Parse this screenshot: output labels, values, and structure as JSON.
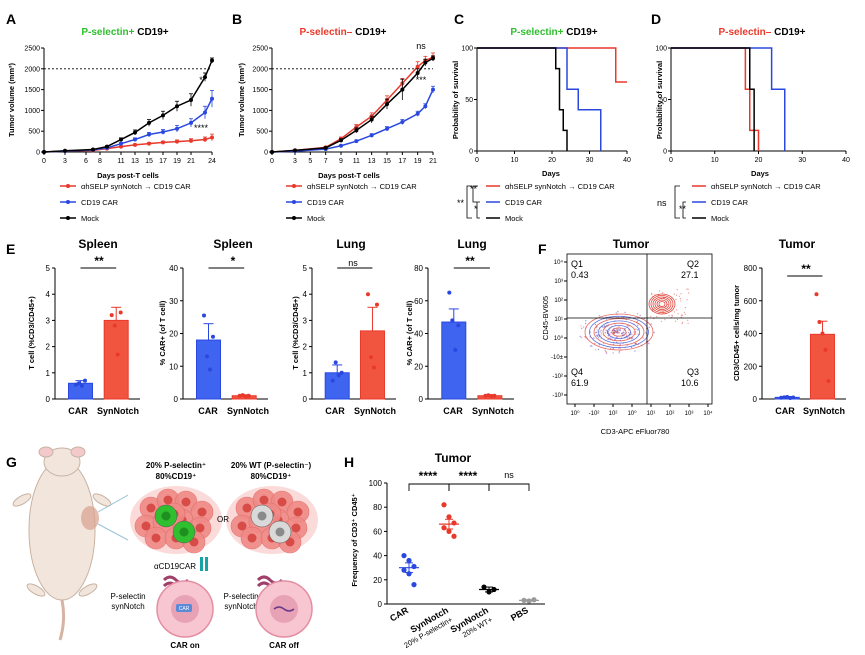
{
  "colors": {
    "selp": "#e8392b",
    "car": "#2a48e0",
    "mock": "#000000",
    "green": "#2fbf2f",
    "gray": "#9a9a9a",
    "darkred": "#d42b2b"
  },
  "panels": {
    "A": {
      "label": "A",
      "title_colored": "P-selectin+",
      "title_rest": " CD19+",
      "ylabel": "Tumor volume (mm³)",
      "xlabel": "Days post-T cells",
      "sig_top": "*",
      "sig_bottom": "****"
    },
    "B": {
      "label": "B",
      "title_colored": "P-selectin–",
      "title_rest": " CD19+",
      "ylabel": "Tumor volume (mm³)",
      "xlabel": "Days post-T cells",
      "sig_top": "ns",
      "sig_bottom": "***"
    },
    "C": {
      "label": "C",
      "title_colored": "P-selectin+",
      "title_rest": " CD19+",
      "ylabel": "Probability of survival",
      "xlabel": "Days",
      "sig_1": "**",
      "sig_2": "**",
      "sig_3": "*"
    },
    "D": {
      "label": "D",
      "title_colored": "P-selectin–",
      "title_rest": " CD19+",
      "ylabel": "Probability of survival",
      "xlabel": "Days",
      "sig_1": "ns",
      "sig_2": "**"
    },
    "E": {
      "label": "E",
      "spleen_t": {
        "title": "Spleen",
        "ylabel": "T cell (%CD3/CD45+)",
        "sig": "**"
      },
      "spleen_car": {
        "title": "Spleen",
        "ylabel": "% CAR+ (of T cell)",
        "sig": "*"
      },
      "lung_t": {
        "title": "Lung",
        "ylabel": "T cell (%CD3/CD45+)",
        "sig": "ns"
      },
      "lung_car": {
        "title": "Lung",
        "ylabel": "% CAR+ (of T cell)",
        "sig": "**"
      },
      "cat_car": "CAR",
      "cat_syn": "SynNotch"
    },
    "F": {
      "label": "F",
      "flow_title": "Tumor",
      "flow_xlabel": "CD3-APC eFluor780",
      "flow_ylabel": "CD45-BV605",
      "q1_label": "Q1",
      "q1_value": "0.43",
      "q2_label": "Q2",
      "q2_value": "27.1",
      "q3_label": "Q3",
      "q3_value": "10.6",
      "q4_label": "Q4",
      "q4_value": "61.9",
      "bar_title": "Tumor",
      "bar_ylabel": "CD3/CD45+ cells/mg tumor",
      "bar_sig": "**",
      "cat_car": "CAR",
      "cat_syn": "SynNotch"
    },
    "G": {
      "label": "G",
      "left_title_line1": "20% P-selectin⁺",
      "left_title_line2": "80%CD19⁺",
      "right_title_line1": "20% WT (P-selectin⁻)",
      "right_title_line2": "80%CD19⁺",
      "or_text": "OR",
      "acd19car": "αCD19CAR",
      "pselectin_left_1": "P-selectin",
      "pselectin_left_2": "synNotch",
      "pselectin_right_1": "P-selectin",
      "pselectin_right_2": "synNotch",
      "car_tag": "CAR",
      "car_on": "CAR on",
      "car_off": "CAR off"
    },
    "H": {
      "label": "H",
      "title": "Tumor",
      "ylabel": "Frequency of CD3⁺ CD45⁺",
      "sig_1": "****",
      "sig_2": "****",
      "sig_3": "ns",
      "cat_1": "CAR",
      "cat_2a": "SynNotch",
      "cat_2b": "20% P-selectin+",
      "cat_3a": "SynNotch",
      "cat_3b": "20% WT+",
      "cat_4": "PBS"
    }
  },
  "legend": {
    "selp": "αhSELP synNotch → CD19 CAR",
    "car": "CD19 CAR",
    "mock": "Mock"
  },
  "chart_data": [
    {
      "id": "A",
      "type": "line",
      "x": [
        0,
        3,
        7,
        9,
        11,
        13,
        15,
        17,
        19,
        21,
        23,
        24
      ],
      "xticks": [
        0,
        3,
        6,
        8,
        11,
        13,
        15,
        17,
        19,
        21,
        24
      ],
      "ylim": [
        0,
        2500
      ],
      "yticks": [
        0,
        500,
        1000,
        1500,
        2000,
        2500
      ],
      "threshold": 2000,
      "series": [
        {
          "name": "αhSELP synNotch → CD19 CAR",
          "color": "#e8392b",
          "values": [
            0,
            20,
            40,
            80,
            130,
            170,
            200,
            230,
            250,
            270,
            300,
            350
          ],
          "err": [
            0,
            5,
            10,
            15,
            20,
            25,
            30,
            30,
            40,
            50,
            60,
            80
          ]
        },
        {
          "name": "CD19 CAR",
          "color": "#2a48e0",
          "values": [
            0,
            20,
            50,
            100,
            200,
            300,
            420,
            480,
            560,
            700,
            950,
            1280
          ],
          "err": [
            0,
            5,
            10,
            20,
            30,
            40,
            50,
            60,
            80,
            100,
            150,
            200
          ]
        },
        {
          "name": "Mock",
          "color": "#000000",
          "values": [
            0,
            30,
            60,
            130,
            300,
            470,
            700,
            880,
            1100,
            1250,
            1800,
            2200
          ],
          "err": [
            0,
            5,
            10,
            20,
            40,
            60,
            80,
            100,
            120,
            150,
            100,
            60
          ]
        }
      ]
    },
    {
      "id": "B",
      "type": "line",
      "x": [
        0,
        3,
        7,
        9,
        11,
        13,
        15,
        17,
        19,
        20,
        21
      ],
      "xticks": [
        0,
        3,
        5,
        7,
        9,
        11,
        13,
        15,
        17,
        19,
        21
      ],
      "ylim": [
        0,
        2500
      ],
      "yticks": [
        0,
        500,
        1000,
        1500,
        2000,
        2500
      ],
      "threshold": 2000,
      "series": [
        {
          "name": "αhSELP synNotch → CD19 CAR",
          "color": "#e8392b",
          "values": [
            0,
            40,
            110,
            320,
            600,
            860,
            1250,
            1650,
            2050,
            2200,
            2280
          ],
          "err": [
            0,
            5,
            20,
            40,
            60,
            80,
            100,
            120,
            120,
            100,
            100
          ]
        },
        {
          "name": "CD19 CAR",
          "color": "#2a48e0",
          "values": [
            0,
            20,
            70,
            150,
            260,
            400,
            560,
            720,
            920,
            1100,
            1500
          ],
          "err": [
            0,
            5,
            10,
            20,
            30,
            40,
            50,
            60,
            60,
            60,
            80
          ]
        },
        {
          "name": "Mock",
          "color": "#000000",
          "values": [
            0,
            40,
            100,
            280,
            520,
            780,
            1150,
            1500,
            1900,
            2150,
            2250
          ],
          "err": [
            0,
            5,
            20,
            40,
            60,
            80,
            120,
            250,
            100,
            80,
            60
          ]
        }
      ]
    },
    {
      "id": "C",
      "type": "survival",
      "xlim": [
        0,
        40
      ],
      "xticks": [
        0,
        10,
        20,
        30,
        40
      ],
      "ylim": [
        0,
        100
      ],
      "yticks": [
        0,
        50,
        100
      ],
      "series": [
        {
          "name": "αhSELP synNotch → CD19 CAR",
          "color": "#e8392b",
          "steps": [
            [
              0,
              100
            ],
            [
              37,
              100
            ],
            [
              37,
              67
            ],
            [
              40,
              67
            ]
          ]
        },
        {
          "name": "CD19 CAR",
          "color": "#2a48e0",
          "steps": [
            [
              0,
              100
            ],
            [
              24,
              100
            ],
            [
              24,
              60
            ],
            [
              27,
              60
            ],
            [
              27,
              40
            ],
            [
              33,
              40
            ],
            [
              33,
              0
            ]
          ]
        },
        {
          "name": "Mock",
          "color": "#000000",
          "steps": [
            [
              0,
              100
            ],
            [
              21,
              100
            ],
            [
              21,
              80
            ],
            [
              22,
              80
            ],
            [
              22,
              40
            ],
            [
              23,
              40
            ],
            [
              23,
              20
            ],
            [
              24,
              20
            ],
            [
              24,
              0
            ]
          ]
        }
      ]
    },
    {
      "id": "D",
      "type": "survival",
      "xlim": [
        0,
        40
      ],
      "xticks": [
        0,
        10,
        20,
        30,
        40
      ],
      "ylim": [
        0,
        100
      ],
      "yticks": [
        0,
        50,
        100
      ],
      "series": [
        {
          "name": "αhSELP synNotch → CD19 CAR",
          "color": "#e8392b",
          "steps": [
            [
              0,
              100
            ],
            [
              17,
              100
            ],
            [
              17,
              60
            ],
            [
              18,
              60
            ],
            [
              18,
              20
            ],
            [
              20,
              20
            ],
            [
              20,
              0
            ]
          ]
        },
        {
          "name": "CD19 CAR",
          "color": "#2a48e0",
          "steps": [
            [
              0,
              100
            ],
            [
              23,
              100
            ],
            [
              23,
              60
            ],
            [
              26,
              60
            ],
            [
              26,
              0
            ]
          ]
        },
        {
          "name": "Mock",
          "color": "#000000",
          "steps": [
            [
              0,
              100
            ],
            [
              18,
              100
            ],
            [
              18,
              60
            ],
            [
              19,
              60
            ],
            [
              19,
              0
            ]
          ]
        }
      ]
    },
    {
      "id": "E1",
      "type": "bar",
      "title": "Spleen",
      "ylabel": "T cell (%CD3/CD45+)",
      "categories": [
        "CAR",
        "SynNotch"
      ],
      "ylim": [
        0,
        5
      ],
      "yticks": [
        0,
        1,
        2,
        3,
        4,
        5
      ],
      "values": [
        0.6,
        3.0
      ],
      "err": [
        0.1,
        0.5
      ],
      "points": [
        [
          0.55,
          0.6,
          0.5,
          0.7
        ],
        [
          3.2,
          2.8,
          1.7,
          3.3
        ]
      ]
    },
    {
      "id": "E2",
      "type": "bar",
      "title": "Spleen",
      "ylabel": "% CAR+ (of T cell)",
      "categories": [
        "CAR",
        "SynNotch"
      ],
      "ylim": [
        0,
        40
      ],
      "yticks": [
        0,
        10,
        20,
        30,
        40
      ],
      "values": [
        18,
        1
      ],
      "err": [
        5,
        0.3
      ],
      "points": [
        [
          25.5,
          13,
          9,
          19
        ],
        [
          1,
          1.2,
          0.8,
          1
        ]
      ]
    },
    {
      "id": "E3",
      "type": "bar",
      "title": "Lung",
      "ylabel": "T cell (%CD3/CD45+)",
      "categories": [
        "CAR",
        "SynNotch"
      ],
      "ylim": [
        0,
        5
      ],
      "yticks": [
        0,
        1,
        2,
        3,
        4,
        5
      ],
      "values": [
        1.0,
        2.6
      ],
      "err": [
        0.3,
        0.9
      ],
      "points": [
        [
          0.7,
          1.4,
          0.9,
          1.0
        ],
        [
          4.0,
          1.6,
          1.2,
          3.6
        ]
      ]
    },
    {
      "id": "E4",
      "type": "bar",
      "title": "Lung",
      "ylabel": "% CAR+ (of T cell)",
      "categories": [
        "CAR",
        "SynNotch"
      ],
      "ylim": [
        0,
        80
      ],
      "yticks": [
        0,
        20,
        40,
        60,
        80
      ],
      "values": [
        47,
        2
      ],
      "err": [
        8,
        0.5
      ],
      "points": [
        [
          65,
          48,
          30,
          45
        ],
        [
          2,
          2.3,
          1.8,
          2
        ]
      ]
    },
    {
      "id": "F",
      "type": "bar",
      "title": "Tumor",
      "ylabel": "CD3/CD45+ cells/mg tumor",
      "categories": [
        "CAR",
        "SynNotch"
      ],
      "ylim": [
        0,
        800
      ],
      "yticks": [
        0,
        200,
        400,
        600,
        800
      ],
      "values": [
        10,
        395
      ],
      "err": [
        5,
        80
      ],
      "points": [
        [
          8,
          10,
          12,
          6,
          9
        ],
        [
          640,
          470,
          400,
          300,
          110
        ]
      ]
    },
    {
      "id": "H",
      "type": "scatter",
      "title": "Tumor",
      "categories": [
        "CAR",
        "SynNotch 20% P-selectin+",
        "SynNotch 20% WT+",
        "PBS"
      ],
      "ylim": [
        0,
        100
      ],
      "yticks": [
        0,
        20,
        40,
        60,
        80,
        100
      ],
      "means": [
        30,
        66,
        12,
        3
      ],
      "err": [
        4,
        4,
        2,
        0.5
      ],
      "points": [
        [
          40,
          36,
          31,
          28,
          25,
          16
        ],
        [
          82,
          72,
          67,
          63,
          60,
          56
        ],
        [
          14,
          10,
          12
        ],
        [
          3,
          2.5,
          3.5
        ]
      ]
    }
  ]
}
